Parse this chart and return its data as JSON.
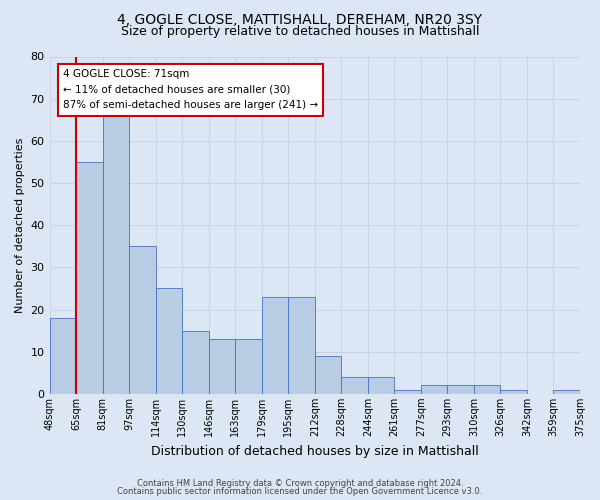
{
  "title": "4, GOGLE CLOSE, MATTISHALL, DEREHAM, NR20 3SY",
  "subtitle": "Size of property relative to detached houses in Mattishall",
  "xlabel": "Distribution of detached houses by size in Mattishall",
  "ylabel": "Number of detached properties",
  "bar_values": [
    18,
    55,
    66,
    35,
    25,
    15,
    13,
    13,
    23,
    23,
    9,
    4,
    4,
    1,
    2,
    2,
    2,
    1,
    0,
    1
  ],
  "categories": [
    "48sqm",
    "65sqm",
    "81sqm",
    "97sqm",
    "114sqm",
    "130sqm",
    "146sqm",
    "163sqm",
    "179sqm",
    "195sqm",
    "212sqm",
    "228sqm",
    "244sqm",
    "261sqm",
    "277sqm",
    "293sqm",
    "310sqm",
    "326sqm",
    "342sqm",
    "359sqm",
    "375sqm"
  ],
  "bar_color": "#b8cce4",
  "bar_edge_color": "#4472c4",
  "vline_x": 1.0,
  "vline_color": "#cc0000",
  "annotation_title": "4 GOGLE CLOSE: 71sqm",
  "annotation_line1": "← 11% of detached houses are smaller (30)",
  "annotation_line2": "87% of semi-detached houses are larger (241) →",
  "annotation_box_color": "#ffffff",
  "annotation_box_edge": "#cc0000",
  "ylim": [
    0,
    80
  ],
  "yticks": [
    0,
    10,
    20,
    30,
    40,
    50,
    60,
    70,
    80
  ],
  "footer_line1": "Contains HM Land Registry data © Crown copyright and database right 2024.",
  "footer_line2": "Contains public sector information licensed under the Open Government Licence v3.0.",
  "background_color": "#dce6f5",
  "title_fontsize": 10,
  "subtitle_fontsize": 9
}
